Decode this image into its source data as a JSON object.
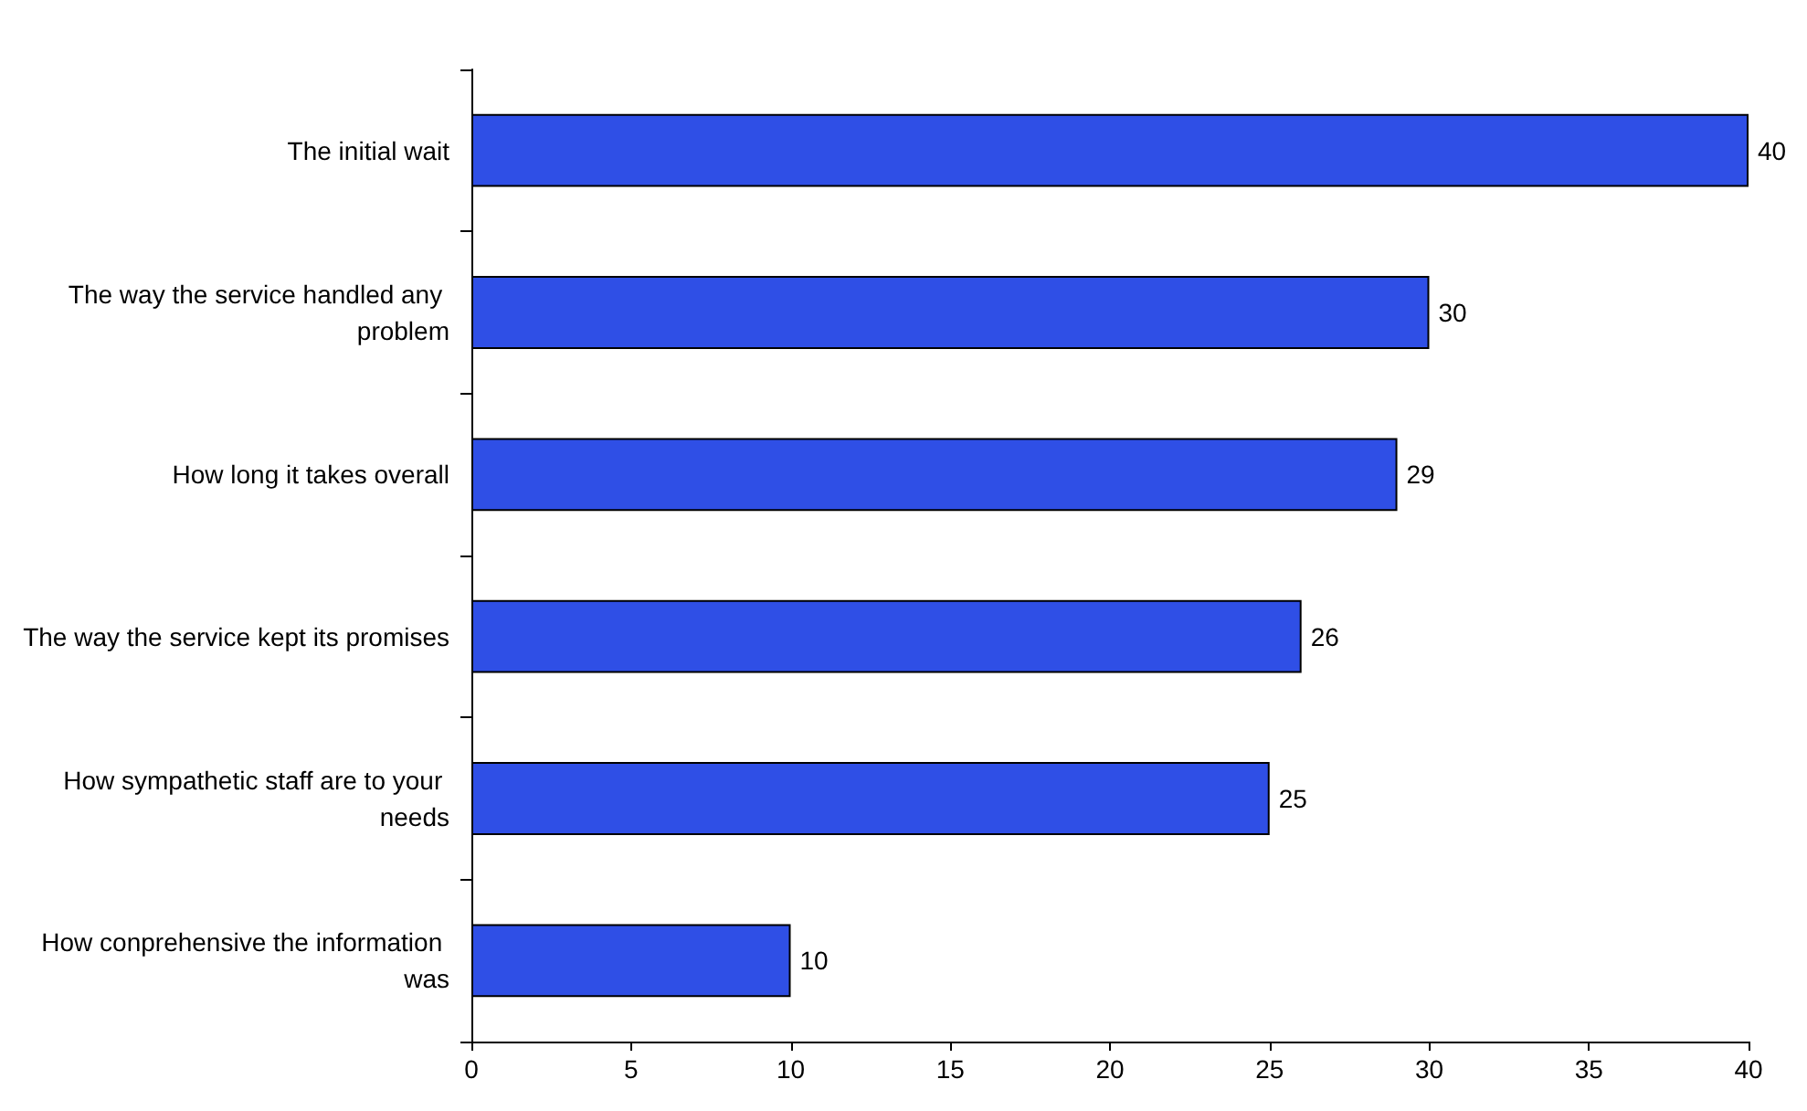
{
  "chart_data": {
    "type": "bar",
    "orientation": "horizontal",
    "categories": [
      "The initial wait",
      "The way the service handled any problem",
      "How long it takes overall",
      "The way the service kept its promises",
      "How sympathetic staff are to your needs",
      "How conprehensive the information was"
    ],
    "values": [
      40,
      30,
      29,
      26,
      25,
      10
    ],
    "color": "#2f4fe6",
    "xlim": [
      0,
      40
    ],
    "xticks": [
      0,
      5,
      10,
      15,
      20,
      25,
      30,
      35,
      40
    ],
    "grid": false,
    "data_labels": true
  }
}
